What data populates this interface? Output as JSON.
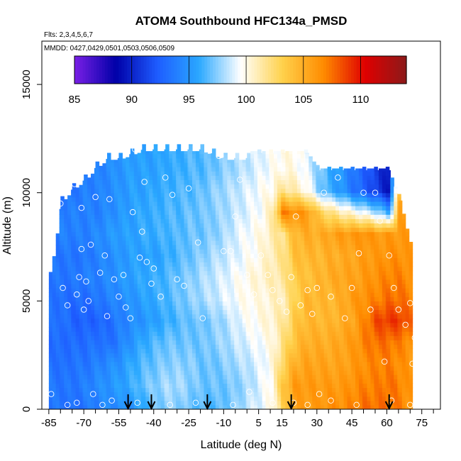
{
  "chart_data": {
    "type": "heatmap",
    "title": "ATOM4 Southbound HFC134a_PMSD",
    "subtitle_flights": "Flts: 2,3,4,5,6,7",
    "subtitle_dates": "MMDD: 0427,0429,0501,0503,0506,0509",
    "xlabel": "Latitude (deg N)",
    "ylabel": "Altitude (m)",
    "xlim": [
      -88,
      83
    ],
    "ylim": [
      0,
      17000
    ],
    "x_ticks": [
      -85,
      -70,
      -55,
      -40,
      -25,
      -10,
      5,
      15,
      30,
      45,
      60,
      75
    ],
    "y_ticks": [
      0,
      5000,
      10000,
      15000
    ],
    "colorbar": {
      "range": [
        85,
        114
      ],
      "ticks": [
        85,
        90,
        95,
        100,
        105,
        110
      ],
      "colors": [
        "#7a1fe6",
        "#0000a8",
        "#1e5cff",
        "#2aa8ff",
        "#ffffff",
        "#ffd24d",
        "#ff8c00",
        "#e00000",
        "#8b1a1a"
      ]
    },
    "arrows_latitude": [
      -51,
      -41,
      -17,
      19,
      61
    ],
    "profile_columns": [
      {
        "lat": -88,
        "top": 0,
        "v": []
      },
      {
        "lat": -85,
        "top": 6500,
        "v": [
          93.5,
          93.5,
          93.5,
          93,
          93,
          93.5,
          93.5,
          93.5
        ]
      },
      {
        "lat": -80,
        "top": 10000,
        "v": [
          93.5,
          93.5,
          93,
          93,
          93.5,
          93,
          93.5,
          93.5,
          94,
          94,
          93.5
        ]
      },
      {
        "lat": -75,
        "top": 10600,
        "v": [
          93,
          93.5,
          93.5,
          93,
          92.5,
          93,
          93.5,
          93.5,
          94,
          94,
          93.5
        ]
      },
      {
        "lat": -70,
        "top": 11000,
        "v": [
          93.5,
          94,
          93.5,
          93,
          92.5,
          93,
          94,
          93.5,
          94,
          94,
          94
        ]
      },
      {
        "lat": -65,
        "top": 11600,
        "v": [
          94,
          94.5,
          94,
          93.5,
          92.5,
          93.5,
          94,
          94,
          94.5,
          94,
          94
        ]
      },
      {
        "lat": -60,
        "top": 12000,
        "v": [
          94.5,
          95,
          94.5,
          93,
          93,
          94,
          94.5,
          94.5,
          95,
          94.5,
          94.5,
          94.5
        ]
      },
      {
        "lat": -55,
        "top": 12000,
        "v": [
          94.5,
          95.5,
          95,
          94,
          94,
          94.5,
          95,
          95,
          95.5,
          95,
          95,
          95
        ]
      },
      {
        "lat": -50,
        "top": 12200,
        "v": [
          95,
          96,
          96,
          95,
          94.5,
          95,
          95.5,
          95.5,
          95.5,
          95.5,
          95.5,
          95.5
        ]
      },
      {
        "lat": -45,
        "top": 12400,
        "v": [
          96,
          97,
          96.5,
          96,
          95,
          95.5,
          96,
          95.5,
          96,
          96,
          95.5,
          95.5
        ]
      },
      {
        "lat": -40,
        "top": 12400,
        "v": [
          97,
          97.5,
          97,
          96.5,
          95.5,
          96,
          96,
          95.5,
          96,
          96,
          96,
          95.5
        ]
      },
      {
        "lat": -35,
        "top": 12400,
        "v": [
          97.5,
          98,
          97.5,
          97,
          96,
          96.5,
          96.5,
          96,
          96.5,
          96.5,
          96,
          96
        ]
      },
      {
        "lat": -30,
        "top": 12400,
        "v": [
          97.5,
          98,
          97.5,
          97,
          96.5,
          97,
          97,
          96.5,
          96.5,
          96.5,
          96.5,
          96
        ]
      },
      {
        "lat": -25,
        "top": 12400,
        "v": [
          97,
          97.5,
          97.5,
          97,
          97,
          97.5,
          97.5,
          97,
          97,
          97,
          96.5,
          96.5
        ]
      },
      {
        "lat": -20,
        "top": 12400,
        "v": [
          96.5,
          97,
          97,
          97,
          97,
          98,
          98,
          97.5,
          97,
          97,
          97,
          96.5
        ]
      },
      {
        "lat": -15,
        "top": 12200,
        "v": [
          96.5,
          97,
          97,
          97.5,
          97.5,
          98.5,
          98.5,
          98,
          97.5,
          97.5,
          97.5,
          97
        ]
      },
      {
        "lat": -10,
        "top": 12000,
        "v": [
          97,
          97,
          97.5,
          98,
          98,
          99,
          99,
          98.5,
          98,
          98,
          98,
          97.5
        ]
      },
      {
        "lat": -5,
        "top": 12000,
        "v": [
          97.5,
          97.5,
          98,
          98.5,
          99,
          99.5,
          99.5,
          99,
          99,
          98.5,
          98.5,
          98
        ]
      },
      {
        "lat": 0,
        "top": 12000,
        "v": [
          98.5,
          98,
          98.5,
          99,
          99.5,
          100,
          100,
          99.5,
          99.5,
          99,
          99,
          98.5
        ]
      },
      {
        "lat": 5,
        "top": 12000,
        "v": [
          99,
          99,
          99,
          99.5,
          100,
          100,
          100.5,
          100,
          100,
          99.5,
          99.5,
          99
        ]
      },
      {
        "lat": 10,
        "top": 12000,
        "v": [
          100,
          100,
          100,
          100,
          100.5,
          100.5,
          101,
          101,
          101,
          101,
          100,
          99.5
        ]
      },
      {
        "lat": 15,
        "top": 12000,
        "v": [
          103,
          104,
          103,
          102,
          101.5,
          101,
          101.5,
          102,
          102,
          107,
          102,
          100
        ]
      },
      {
        "lat": 20,
        "top": 12000,
        "v": [
          105.5,
          106,
          105,
          104,
          103.5,
          103,
          103.5,
          104,
          104.5,
          106.5,
          101,
          100
        ]
      },
      {
        "lat": 25,
        "top": 12000,
        "v": [
          106,
          106,
          105.5,
          105,
          104.5,
          104.5,
          104,
          104.5,
          105,
          106,
          100,
          99
        ]
      },
      {
        "lat": 30,
        "top": 11200,
        "v": [
          106,
          106,
          105.5,
          105,
          104.5,
          104.5,
          104.5,
          104.5,
          105,
          103.5,
          97.5
        ]
      },
      {
        "lat": 35,
        "top": 11200,
        "v": [
          106.5,
          106,
          105.5,
          105,
          104.5,
          104.5,
          105,
          105,
          105.5,
          102,
          96
        ]
      },
      {
        "lat": 40,
        "top": 11200,
        "v": [
          106.5,
          106,
          105.5,
          105.5,
          105,
          105,
          105.5,
          105,
          106,
          101,
          95
        ]
      },
      {
        "lat": 45,
        "top": 11200,
        "v": [
          107,
          106.5,
          106,
          106,
          105.5,
          106,
          105.5,
          105.5,
          106,
          100,
          93.5
        ]
      },
      {
        "lat": 50,
        "top": 11200,
        "v": [
          107.5,
          107,
          106.5,
          107,
          107,
          106.5,
          106,
          106,
          106.5,
          99,
          92.5
        ]
      },
      {
        "lat": 55,
        "top": 11200,
        "v": [
          107.5,
          107,
          107,
          107.5,
          108.5,
          107,
          106.5,
          106,
          106,
          98,
          91
        ]
      },
      {
        "lat": 60,
        "top": 11200,
        "v": [
          107.5,
          107.5,
          107,
          107.5,
          109,
          107.5,
          107,
          106.5,
          106,
          96,
          89.5
        ]
      },
      {
        "lat": 65,
        "top": 9800,
        "v": [
          107,
          107,
          106.5,
          107,
          109,
          107.5,
          107,
          106.5,
          106,
          105.5
        ]
      },
      {
        "lat": 70,
        "top": 7500,
        "v": [
          106,
          106,
          106,
          106.5,
          107.5,
          107,
          106.5,
          106
        ]
      },
      {
        "lat": 73,
        "top": 0,
        "v": []
      }
    ],
    "sample_points": [
      [
        -87,
        6300
      ],
      [
        -80,
        9500
      ],
      [
        -83,
        9600
      ],
      [
        -79,
        5600
      ],
      [
        -77,
        4800
      ],
      [
        -74,
        10400
      ],
      [
        -73,
        5300
      ],
      [
        -71,
        9300
      ],
      [
        -72,
        6100
      ],
      [
        -71,
        7400
      ],
      [
        -70,
        4600
      ],
      [
        -69,
        5900
      ],
      [
        -68,
        5000
      ],
      [
        -67,
        7600
      ],
      [
        -65,
        9800
      ],
      [
        -63,
        6300
      ],
      [
        -61,
        7100
      ],
      [
        -60,
        4300
      ],
      [
        -59,
        9700
      ],
      [
        -57,
        6000
      ],
      [
        -55,
        5200
      ],
      [
        -53,
        6200
      ],
      [
        -52,
        4700
      ],
      [
        -50,
        4200
      ],
      [
        -49,
        9100
      ],
      [
        -48,
        12000
      ],
      [
        -46,
        7000
      ],
      [
        -45,
        8200
      ],
      [
        -44,
        10500
      ],
      [
        -43,
        6800
      ],
      [
        -41,
        5800
      ],
      [
        -40,
        6500
      ],
      [
        -37,
        5200
      ],
      [
        -35,
        10700
      ],
      [
        -32,
        9900
      ],
      [
        -30,
        6000
      ],
      [
        -27,
        5700
      ],
      [
        -25,
        10200
      ],
      [
        -21,
        7700
      ],
      [
        -19,
        4200
      ],
      [
        -17,
        12300
      ],
      [
        -12,
        11700
      ],
      [
        -10,
        7300
      ],
      [
        -7,
        7300
      ],
      [
        -5,
        8900
      ],
      [
        -3,
        10600
      ],
      [
        0,
        6200
      ],
      [
        3,
        5300
      ],
      [
        6,
        7100
      ],
      [
        9,
        6200
      ],
      [
        11,
        5500
      ],
      [
        14,
        5000
      ],
      [
        17,
        4500
      ],
      [
        19,
        6100
      ],
      [
        21,
        8900
      ],
      [
        23,
        4800
      ],
      [
        26,
        5500
      ],
      [
        28,
        4400
      ],
      [
        30,
        5600
      ],
      [
        33,
        10000
      ],
      [
        36,
        5200
      ],
      [
        39,
        10700
      ],
      [
        42,
        4200
      ],
      [
        45,
        5600
      ],
      [
        48,
        7200
      ],
      [
        50,
        10000
      ],
      [
        53,
        4600
      ],
      [
        55,
        10000
      ],
      [
        57,
        8700
      ],
      [
        59,
        2200
      ],
      [
        61,
        7100
      ],
      [
        63,
        5600
      ],
      [
        65,
        4600
      ],
      [
        68,
        3900
      ],
      [
        70,
        4900
      ],
      [
        71,
        2100
      ],
      [
        72,
        3300
      ],
      [
        -84,
        700
      ],
      [
        -77,
        200
      ],
      [
        -73,
        300
      ],
      [
        -62,
        200
      ],
      [
        -58,
        400
      ],
      [
        -47,
        300
      ],
      [
        -33,
        200
      ],
      [
        -22,
        300
      ],
      [
        -6,
        200
      ],
      [
        11,
        300
      ],
      [
        20,
        300
      ],
      [
        26,
        200
      ],
      [
        36,
        400
      ],
      [
        47,
        200
      ],
      [
        62,
        400
      ],
      [
        70,
        200
      ],
      [
        1,
        800
      ],
      [
        -66,
        700
      ],
      [
        31,
        700
      ]
    ]
  }
}
